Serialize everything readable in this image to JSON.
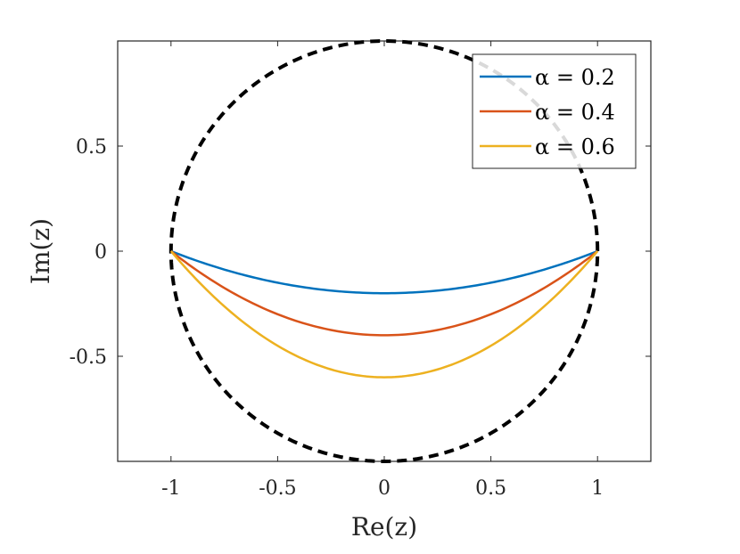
{
  "chart_data": {
    "type": "line",
    "title": "",
    "xlabel": "Re(z)",
    "ylabel": "Im(z)",
    "xlim": [
      -1.25,
      1.25
    ],
    "ylim": [
      -1,
      1
    ],
    "xticks": [
      -1,
      -0.5,
      0,
      0.5,
      1
    ],
    "xtick_labels": [
      "-1",
      "-0.5",
      "0",
      "0.5",
      "1"
    ],
    "yticks": [
      -0.5,
      0,
      0.5
    ],
    "ytick_labels": [
      "-0.5",
      "0",
      "0.5"
    ],
    "grid": false,
    "legend_position": "top-right",
    "unit_circle": {
      "center": [
        0,
        0
      ],
      "radius": 1,
      "style": "dashed",
      "color": "#000000"
    },
    "series": [
      {
        "name": "α = 0.2",
        "alpha": 0.2,
        "color": "#0072BD",
        "x": [
          -1,
          -0.5,
          0,
          0.5,
          1
        ],
        "y": [
          0,
          -0.15,
          -0.2,
          -0.15,
          0
        ]
      },
      {
        "name": "α = 0.4",
        "alpha": 0.4,
        "color": "#D95319",
        "x": [
          -1,
          -0.5,
          0,
          0.5,
          1
        ],
        "y": [
          0,
          -0.3,
          -0.4,
          -0.3,
          0
        ]
      },
      {
        "name": "α = 0.6",
        "alpha": 0.6,
        "color": "#EDB120",
        "x": [
          -1,
          -0.5,
          0,
          0.5,
          1
        ],
        "y": [
          0,
          -0.45,
          -0.6,
          -0.45,
          0
        ]
      }
    ]
  }
}
